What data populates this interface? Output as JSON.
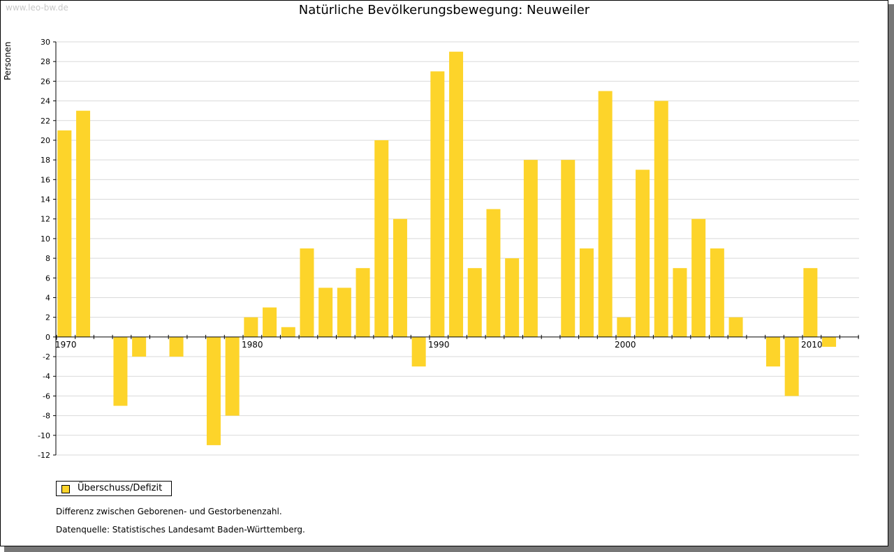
{
  "watermark": "www.leo-bw.de",
  "legend": {
    "label": "Überschuss/Defizit"
  },
  "notes": {
    "description": "Differenz zwischen Geborenen- und Gestorbenenzahl.",
    "source": "Datenquelle: Statistisches Landesamt Baden-Württemberg."
  },
  "chart_data": {
    "type": "bar",
    "title": "Natürliche Bevölkerungsbewegung: Neuweiler",
    "ylabel": "Personen",
    "xlabel": "",
    "ylim": [
      -12,
      30
    ],
    "ytick_step": 2,
    "x_tick_labels": [
      "1970",
      "1980",
      "1990",
      "2000",
      "2010"
    ],
    "bar_color": "#fdd42a",
    "series": [
      {
        "name": "Überschuss/Defizit",
        "years": [
          1970,
          1971,
          1972,
          1973,
          1974,
          1975,
          1976,
          1977,
          1978,
          1979,
          1980,
          1981,
          1982,
          1983,
          1984,
          1985,
          1986,
          1987,
          1988,
          1989,
          1990,
          1991,
          1992,
          1993,
          1994,
          1995,
          1996,
          1997,
          1998,
          1999,
          2000,
          2001,
          2002,
          2003,
          2004,
          2005,
          2006,
          2007,
          2008,
          2009,
          2010,
          2011
        ],
        "values": [
          21,
          23,
          0,
          -7,
          -2,
          0,
          -2,
          0,
          -11,
          -8,
          2,
          3,
          1,
          9,
          5,
          5,
          7,
          20,
          12,
          -3,
          27,
          29,
          7,
          13,
          8,
          18,
          0,
          18,
          9,
          25,
          2,
          17,
          24,
          7,
          12,
          9,
          2,
          0,
          -3,
          -6,
          7,
          -1
        ]
      }
    ]
  }
}
